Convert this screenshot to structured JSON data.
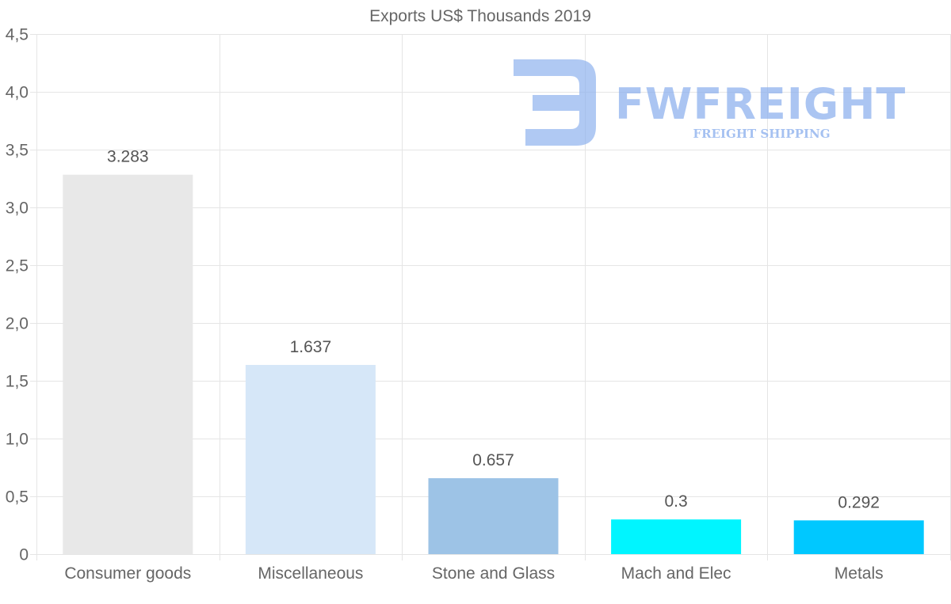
{
  "chart_data": {
    "type": "bar",
    "title": "Exports US$ Thousands 2019",
    "categories": [
      "Consumer goods",
      "Miscellaneous",
      "Stone and Glass",
      "Mach and Elec",
      "Metals"
    ],
    "values": [
      3.283,
      1.637,
      0.657,
      0.3,
      0.292
    ],
    "data_labels": [
      "3.283",
      "1.637",
      "0.657",
      "0.3",
      "0.292"
    ],
    "colors": [
      "#e8e8e8",
      "#d6e7f8",
      "#9dc3e6",
      "#00f5ff",
      "#00c8ff"
    ],
    "ylim": [
      0,
      4.5
    ],
    "yticks": [
      0,
      0.5,
      1.0,
      1.5,
      2.0,
      2.5,
      3.0,
      3.5,
      4.0,
      4.5
    ],
    "ytick_labels": [
      "0",
      "0,5",
      "1,0",
      "1,5",
      "2,0",
      "2,5",
      "3,0",
      "3,5",
      "4,0",
      "4,5"
    ],
    "xlabel": "",
    "ylabel": "",
    "grid": true,
    "legend": "none"
  },
  "watermark": {
    "brand": "FWFREIGHT",
    "tagline": "FREIGHT SHIPPING",
    "icon": "fw-logo-icon",
    "color": "#8fb2ee"
  }
}
